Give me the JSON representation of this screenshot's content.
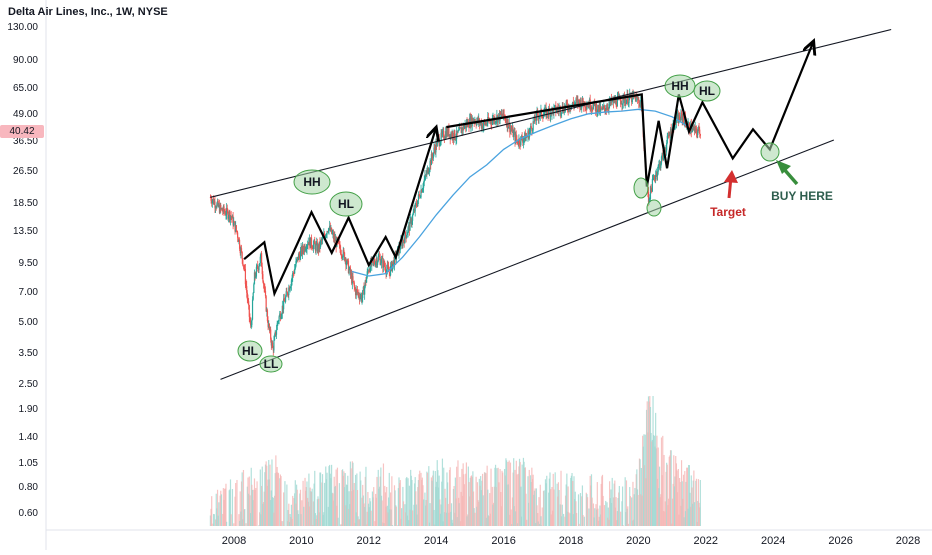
{
  "header": {
    "symbol_title": "Delta Air Lines, Inc., 1W, NYSE"
  },
  "price_tag": "40.42",
  "colors": {
    "candle_up": "#26a69a",
    "candle_down": "#ef5350",
    "ma_line": "#4aa3df",
    "trendline": "#131722",
    "zigzag": "#000000",
    "ellipse_fill": "#a5d6a7",
    "ellipse_stroke": "#43a047",
    "target_arrow": "#d32f2f",
    "buy_arrow": "#388e3c",
    "buy_text": "#2e5e4e",
    "target_text": "#c62828"
  },
  "annotations": {
    "ll": "LL",
    "hl_low": "HL",
    "hh_2010": "HH",
    "hl_2011": "HL",
    "hh_2021": "HH",
    "hl_2021": "HL",
    "target": "Target",
    "buy_here": "BUY HERE"
  },
  "chart_data": {
    "type": "candlestick",
    "title": "Delta Air Lines, Inc., 1W, NYSE",
    "y_scale": "log",
    "y_ticks": [
      "0.60",
      "0.80",
      "1.05",
      "1.40",
      "1.90",
      "2.50",
      "3.50",
      "5.00",
      "7.00",
      "9.50",
      "13.50",
      "18.50",
      "26.50",
      "36.50",
      "49.00",
      "65.00",
      "90.00",
      "130.00"
    ],
    "x_ticks": [
      "2008",
      "2010",
      "2012",
      "2014",
      "2016",
      "2018",
      "2020",
      "2022",
      "2024",
      "2026",
      "2028"
    ],
    "price_path": [
      [
        2007.3,
        19.5
      ],
      [
        2007.6,
        17
      ],
      [
        2007.9,
        16
      ],
      [
        2008.1,
        13
      ],
      [
        2008.3,
        9
      ],
      [
        2008.5,
        4.5
      ],
      [
        2008.6,
        8
      ],
      [
        2008.8,
        10
      ],
      [
        2009.0,
        5
      ],
      [
        2009.15,
        3.6
      ],
      [
        2009.3,
        5
      ],
      [
        2009.6,
        7
      ],
      [
        2009.9,
        10
      ],
      [
        2010.2,
        12
      ],
      [
        2010.5,
        11
      ],
      [
        2010.8,
        14
      ],
      [
        2011.0,
        12
      ],
      [
        2011.3,
        10
      ],
      [
        2011.6,
        7
      ],
      [
        2011.8,
        6.5
      ],
      [
        2012.0,
        9
      ],
      [
        2012.3,
        10
      ],
      [
        2012.6,
        8.5
      ],
      [
        2012.9,
        11
      ],
      [
        2013.2,
        14
      ],
      [
        2013.5,
        20
      ],
      [
        2013.8,
        28
      ],
      [
        2014.0,
        35
      ],
      [
        2014.3,
        40
      ],
      [
        2014.6,
        38
      ],
      [
        2014.8,
        42
      ],
      [
        2015.1,
        46
      ],
      [
        2015.4,
        43
      ],
      [
        2015.7,
        46
      ],
      [
        2016.0,
        48
      ],
      [
        2016.4,
        36
      ],
      [
        2016.7,
        38
      ],
      [
        2017.0,
        48
      ],
      [
        2017.4,
        50
      ],
      [
        2017.8,
        52
      ],
      [
        2018.2,
        55
      ],
      [
        2018.6,
        54
      ],
      [
        2018.9,
        50
      ],
      [
        2019.2,
        55
      ],
      [
        2019.6,
        57
      ],
      [
        2019.9,
        58
      ],
      [
        2020.1,
        54
      ],
      [
        2020.2,
        28
      ],
      [
        2020.3,
        19
      ],
      [
        2020.45,
        24
      ],
      [
        2020.7,
        30
      ],
      [
        2020.9,
        38
      ],
      [
        2021.1,
        45
      ],
      [
        2021.3,
        47
      ],
      [
        2021.5,
        42
      ],
      [
        2021.7,
        40
      ],
      [
        2021.85,
        40.42
      ]
    ],
    "moving_average": [
      [
        2011.5,
        8.6
      ],
      [
        2012.0,
        8.2
      ],
      [
        2012.5,
        8.4
      ],
      [
        2013.0,
        10
      ],
      [
        2013.5,
        12.5
      ],
      [
        2014.0,
        16
      ],
      [
        2014.5,
        20
      ],
      [
        2015.0,
        24.5
      ],
      [
        2015.5,
        28
      ],
      [
        2016.0,
        33
      ],
      [
        2016.5,
        37
      ],
      [
        2017.0,
        40
      ],
      [
        2017.5,
        43
      ],
      [
        2018.0,
        46
      ],
      [
        2018.5,
        48.5
      ],
      [
        2019.0,
        49.5
      ],
      [
        2019.5,
        50
      ],
      [
        2020.0,
        51
      ],
      [
        2020.5,
        50
      ],
      [
        2021.0,
        47
      ],
      [
        2021.3,
        44
      ],
      [
        2021.5,
        42
      ]
    ],
    "volume_note": "volume histogram at bottom",
    "volume_series": [
      [
        2007.3,
        0.55
      ],
      [
        2007.8,
        0.6
      ],
      [
        2008.3,
        0.7
      ],
      [
        2008.8,
        0.75
      ],
      [
        2009.1,
        0.85
      ],
      [
        2009.6,
        0.7
      ],
      [
        2010.0,
        0.65
      ],
      [
        2010.5,
        0.7
      ],
      [
        2011.0,
        0.75
      ],
      [
        2011.5,
        0.8
      ],
      [
        2012.0,
        0.7
      ],
      [
        2012.5,
        0.75
      ],
      [
        2013.0,
        0.7
      ],
      [
        2013.5,
        0.72
      ],
      [
        2014.0,
        0.8
      ],
      [
        2014.5,
        0.78
      ],
      [
        2015.0,
        0.75
      ],
      [
        2015.5,
        0.72
      ],
      [
        2016.0,
        0.78
      ],
      [
        2016.5,
        0.8
      ],
      [
        2017.0,
        0.72
      ],
      [
        2017.5,
        0.7
      ],
      [
        2018.0,
        0.68
      ],
      [
        2018.5,
        0.66
      ],
      [
        2019.0,
        0.65
      ],
      [
        2019.5,
        0.62
      ],
      [
        2020.0,
        0.7
      ],
      [
        2020.2,
        1.3
      ],
      [
        2020.35,
        2.2
      ],
      [
        2020.5,
        1.4
      ],
      [
        2020.8,
        0.9
      ],
      [
        2021.2,
        0.8
      ],
      [
        2021.6,
        0.75
      ],
      [
        2021.85,
        0.7
      ]
    ],
    "trendlines": [
      {
        "name": "upper",
        "from": [
          2007.3,
          19.5
        ],
        "to": [
          2027.5,
          125
        ]
      },
      {
        "name": "lower",
        "from": [
          2007.6,
          2.6
        ],
        "to": [
          2025.8,
          36.5
        ]
      }
    ],
    "zigzag": [
      [
        2008.3,
        9.8
      ],
      [
        2008.9,
        11.8
      ],
      [
        2009.2,
        6.8
      ],
      [
        2009.9,
        11.8
      ],
      [
        2010.3,
        16.5
      ],
      [
        2010.9,
        10.5
      ],
      [
        2011.4,
        15.5
      ],
      [
        2012.0,
        9.2
      ],
      [
        2012.5,
        12.5
      ],
      [
        2012.8,
        10.0
      ],
      [
        2014.0,
        42
      ],
      [
        2014.3,
        42
      ],
      [
        2020.1,
        60
      ],
      [
        2020.25,
        22
      ],
      [
        2020.6,
        45
      ],
      [
        2020.85,
        27
      ],
      [
        2021.2,
        60
      ],
      [
        2021.5,
        40
      ],
      [
        2021.9,
        55
      ],
      [
        2022.8,
        30
      ],
      [
        2023.4,
        41
      ],
      [
        2023.9,
        33
      ],
      [
        2025.2,
        110
      ]
    ],
    "target_point": [
      2022.75,
      28
    ],
    "buy_point": [
      2023.8,
      33
    ]
  }
}
